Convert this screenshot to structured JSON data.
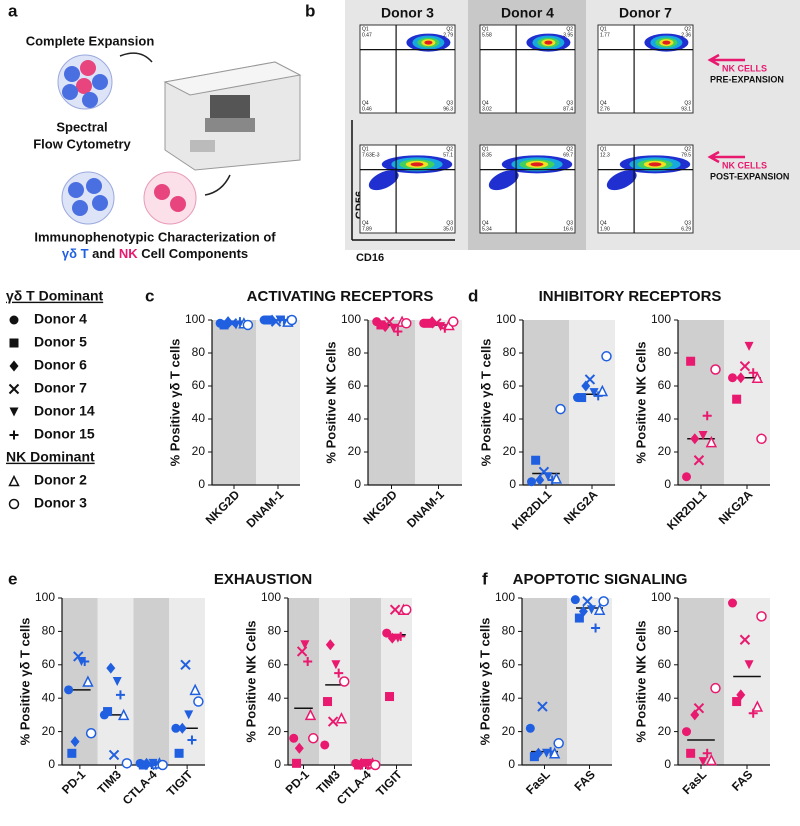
{
  "panel_a": {
    "letter": "a",
    "step1": "Complete Expansion",
    "step2": [
      "Spectral",
      "Flow Cytometry"
    ],
    "caption_line1": "Immunophenotypic Characterization of",
    "caption_line2": [
      {
        "text": "γδ T",
        "color": "#1f5fe0"
      },
      {
        "text": " and ",
        "color": "#111111"
      },
      {
        "text": "NK",
        "color": "#e8196e"
      },
      {
        "text": " Cell Components",
        "color": "#111111"
      }
    ]
  },
  "panel_b": {
    "letter": "b",
    "y_axis": "CD56",
    "x_axis": "CD16",
    "annotations": [
      {
        "title": "NK CELLS",
        "subtitle": "PRE-EXPANSION"
      },
      {
        "title": "NK CELLS",
        "subtitle": "POST-EXPANSION"
      }
    ],
    "donors": [
      "Donor 3",
      "Donor 4",
      "Donor 7"
    ],
    "rows": [
      [
        [
          [
            "Q1",
            "0.47"
          ],
          [
            "Q2",
            "2.79"
          ],
          [
            "Q4",
            "0.46"
          ],
          [
            "Q3",
            "96.3"
          ]
        ],
        [
          [
            "Q1",
            "5.58"
          ],
          [
            "Q2",
            "3.95"
          ],
          [
            "Q4",
            "3.02"
          ],
          [
            "Q3",
            "87.4"
          ]
        ],
        [
          [
            "Q1",
            "1.77"
          ],
          [
            "Q2",
            "2.36"
          ],
          [
            "Q4",
            "2.76"
          ],
          [
            "Q3",
            "93.1"
          ]
        ]
      ],
      [
        [
          [
            "Q1",
            "7.63E-3"
          ],
          [
            "Q2",
            "57.1"
          ],
          [
            "Q4",
            "7.89"
          ],
          [
            "Q3",
            "35.0"
          ]
        ],
        [
          [
            "Q1",
            "8.35"
          ],
          [
            "Q2",
            "69.7"
          ],
          [
            "Q4",
            "5.34"
          ],
          [
            "Q3",
            "16.6"
          ]
        ],
        [
          [
            "Q1",
            "12.3"
          ],
          [
            "Q2",
            "79.5"
          ],
          [
            "Q4",
            "1.90"
          ],
          [
            "Q3",
            "6.29"
          ]
        ]
      ]
    ]
  },
  "legend": {
    "groups": [
      {
        "title": "γδ T Dominant",
        "entries": [
          {
            "name": "Donor 4",
            "marker": "circle"
          },
          {
            "name": "Donor 5",
            "marker": "square"
          },
          {
            "name": "Donor 6",
            "marker": "diamond"
          },
          {
            "name": "Donor 7",
            "marker": "x"
          },
          {
            "name": "Donor 14",
            "marker": "triangle-down"
          },
          {
            "name": "Donor 15",
            "marker": "plus"
          }
        ]
      },
      {
        "title": "NK Dominant",
        "entries": [
          {
            "name": "Donor 2",
            "marker": "triangle-open"
          },
          {
            "name": "Donor 3",
            "marker": "circle-open"
          }
        ]
      }
    ]
  },
  "sections": [
    {
      "letter": "c",
      "title": "ACTIVATING RECEPTORS"
    },
    {
      "letter": "d",
      "title": "INHIBITORY RECEPTORS"
    },
    {
      "letter": "e",
      "title": "EXHAUSTION"
    },
    {
      "letter": "f",
      "title": "APOPTOTIC SIGNALING"
    }
  ],
  "chart_data": [
    {
      "type": "dot",
      "ylabel": "% Positive γδ T cells",
      "categories": [
        "NKG2D",
        "DNAM-1"
      ],
      "color": "#1f5fe0",
      "ylim": [
        0,
        100
      ],
      "yticks": [
        0,
        20,
        40,
        60,
        80,
        100
      ],
      "series": [
        {
          "values": [
            98,
            100
          ]
        },
        {
          "values": [
            97,
            100
          ]
        },
        {
          "values": [
            99,
            100
          ]
        },
        {
          "values": [
            98,
            99
          ]
        },
        {
          "values": [
            97,
            100
          ]
        },
        {
          "values": [
            99,
            100
          ]
        },
        {
          "values": [
            98,
            99
          ]
        },
        {
          "values": [
            97,
            100
          ]
        }
      ],
      "means": [
        98,
        100
      ]
    },
    {
      "type": "dot",
      "ylabel": "% Positive NK Cells",
      "categories": [
        "NKG2D",
        "DNAM-1"
      ],
      "color": "#e8196e",
      "ylim": [
        0,
        100
      ],
      "yticks": [
        0,
        20,
        40,
        60,
        80,
        100
      ],
      "series": [
        {
          "values": [
            99,
            98
          ]
        },
        {
          "values": [
            97,
            98
          ]
        },
        {
          "values": [
            96,
            99
          ]
        },
        {
          "values": [
            99,
            98
          ]
        },
        {
          "values": [
            95,
            96
          ]
        },
        {
          "values": [
            93,
            95
          ]
        },
        {
          "values": [
            99,
            97
          ]
        },
        {
          "values": [
            98,
            99
          ]
        }
      ],
      "means": [
        97,
        97
      ]
    },
    {
      "type": "dot",
      "ylabel": "% Positive γδ T cells",
      "categories": [
        "KIR2DL1",
        "NKG2A"
      ],
      "color": "#1f5fe0",
      "ylim": [
        0,
        100
      ],
      "yticks": [
        0,
        20,
        40,
        60,
        80,
        100
      ],
      "series": [
        {
          "values": [
            2,
            53
          ]
        },
        {
          "values": [
            15,
            53
          ]
        },
        {
          "values": [
            3,
            60
          ]
        },
        {
          "values": [
            8,
            64
          ]
        },
        {
          "values": [
            5,
            56
          ]
        },
        {
          "values": [
            3,
            54
          ]
        },
        {
          "values": [
            4,
            57
          ]
        },
        {
          "values": [
            46,
            78
          ]
        }
      ],
      "means": [
        7,
        55
      ]
    },
    {
      "type": "dot",
      "ylabel": "% Positive NK Cells",
      "categories": [
        "KIR2DL1",
        "NKG2A"
      ],
      "color": "#e8196e",
      "ylim": [
        0,
        100
      ],
      "yticks": [
        0,
        20,
        40,
        60,
        80,
        100
      ],
      "series": [
        {
          "values": [
            5,
            65
          ]
        },
        {
          "values": [
            75,
            52
          ]
        },
        {
          "values": [
            28,
            65
          ]
        },
        {
          "values": [
            15,
            72
          ]
        },
        {
          "values": [
            30,
            84
          ]
        },
        {
          "values": [
            42,
            68
          ]
        },
        {
          "values": [
            26,
            65
          ]
        },
        {
          "values": [
            70,
            28
          ]
        }
      ],
      "means": [
        28,
        65
      ]
    },
    {
      "type": "dot",
      "ylabel": "% Positive γδ T cells",
      "categories": [
        "PD-1",
        "TIM3",
        "CTLA-4",
        "TIGIT"
      ],
      "color": "#1f5fe0",
      "ylim": [
        0,
        100
      ],
      "yticks": [
        0,
        20,
        40,
        60,
        80,
        100
      ],
      "series": [
        {
          "values": [
            45,
            30,
            1,
            22
          ]
        },
        {
          "values": [
            7,
            32,
            0,
            7
          ]
        },
        {
          "values": [
            14,
            58,
            1,
            22
          ]
        },
        {
          "values": [
            65,
            6,
            0,
            60
          ]
        },
        {
          "values": [
            62,
            50,
            1,
            30
          ]
        },
        {
          "values": [
            62,
            42,
            0,
            15
          ]
        },
        {
          "values": [
            50,
            30,
            1,
            45
          ]
        },
        {
          "values": [
            19,
            1,
            0,
            38
          ]
        }
      ],
      "means": [
        45,
        30,
        1,
        22
      ]
    },
    {
      "type": "dot",
      "ylabel": "% Positive NK Cells",
      "categories": [
        "PD-1",
        "TIM3",
        "CTLA-4",
        "TIGIT"
      ],
      "color": "#e8196e",
      "ylim": [
        0,
        100
      ],
      "yticks": [
        0,
        20,
        40,
        60,
        80,
        100
      ],
      "series": [
        {
          "values": [
            16,
            12,
            1,
            79
          ]
        },
        {
          "values": [
            1,
            38,
            0,
            41
          ]
        },
        {
          "values": [
            10,
            72,
            1,
            76
          ]
        },
        {
          "values": [
            68,
            26,
            0,
            93
          ]
        },
        {
          "values": [
            72,
            60,
            1,
            76
          ]
        },
        {
          "values": [
            62,
            55,
            0,
            77
          ]
        },
        {
          "values": [
            30,
            28,
            1,
            93
          ]
        },
        {
          "values": [
            16,
            50,
            0,
            93
          ]
        }
      ],
      "means": [
        34,
        48,
        1,
        78
      ]
    },
    {
      "type": "dot",
      "ylabel": "% Positive γδ T cells",
      "categories": [
        "FasL",
        "FAS"
      ],
      "color": "#1f5fe0",
      "ylim": [
        0,
        100
      ],
      "yticks": [
        0,
        20,
        40,
        60,
        80,
        100
      ],
      "series": [
        {
          "values": [
            22,
            99
          ]
        },
        {
          "values": [
            5,
            88
          ]
        },
        {
          "values": [
            7,
            92
          ]
        },
        {
          "values": [
            35,
            98
          ]
        },
        {
          "values": [
            7,
            93
          ]
        },
        {
          "values": [
            8,
            82
          ]
        },
        {
          "values": [
            7,
            93
          ]
        },
        {
          "values": [
            13,
            98
          ]
        }
      ],
      "means": [
        8,
        94
      ]
    },
    {
      "type": "dot",
      "ylabel": "% Positive NK Cells",
      "categories": [
        "FasL",
        "FAS"
      ],
      "color": "#e8196e",
      "ylim": [
        0,
        100
      ],
      "yticks": [
        0,
        20,
        40,
        60,
        80,
        100
      ],
      "series": [
        {
          "values": [
            20,
            97
          ]
        },
        {
          "values": [
            7,
            38
          ]
        },
        {
          "values": [
            30,
            42
          ]
        },
        {
          "values": [
            34,
            75
          ]
        },
        {
          "values": [
            2,
            60
          ]
        },
        {
          "values": [
            7,
            31
          ]
        },
        {
          "values": [
            3,
            35
          ]
        },
        {
          "values": [
            46,
            89
          ]
        }
      ],
      "means": [
        15,
        53
      ]
    }
  ]
}
